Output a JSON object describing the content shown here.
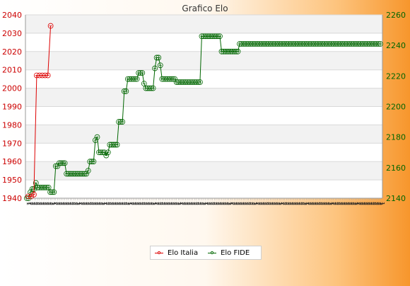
{
  "chart_data": {
    "type": "line",
    "title": "Grafico Elo",
    "grid": true,
    "legend_placement": "bottom-center",
    "left_axis": {
      "ylim": [
        1940,
        2040
      ],
      "ticks": [
        1940,
        1950,
        1960,
        1970,
        1980,
        1990,
        2000,
        2010,
        2020,
        2030,
        2040
      ],
      "color": "#cc0000"
    },
    "right_axis": {
      "ylim": [
        2140,
        2260
      ],
      "ticks": [
        2140,
        2160,
        2180,
        2200,
        2220,
        2240,
        2260
      ],
      "color": "#006600"
    },
    "series": [
      {
        "name": "Elo Italia",
        "axis": "left",
        "color": "#dd0000",
        "values": [
          1941,
          1941,
          1942,
          2007,
          2007,
          2007,
          2007,
          2007,
          2034
        ]
      },
      {
        "name": "Elo FIDE",
        "axis": "right",
        "color": "#006600",
        "values": [
          2140,
          2140,
          2144,
          2146,
          2146,
          2150,
          2147,
          2147,
          2147,
          2147,
          2147,
          2147,
          2147,
          2144,
          2144,
          2144,
          2161,
          2161,
          2163,
          2163,
          2163,
          2163,
          2156,
          2156,
          2156,
          2156,
          2156,
          2156,
          2156,
          2156,
          2156,
          2156,
          2156,
          2156,
          2158,
          2164,
          2164,
          2164,
          2178,
          2180,
          2170,
          2170,
          2170,
          2170,
          2168,
          2170,
          2175,
          2175,
          2175,
          2175,
          2175,
          2190,
          2190,
          2190,
          2210,
          2210,
          2218,
          2218,
          2218,
          2218,
          2218,
          2218,
          2222,
          2222,
          2222,
          2215,
          2212,
          2212,
          2212,
          2212,
          2212,
          2225,
          2232,
          2232,
          2227,
          2218,
          2218,
          2218,
          2218,
          2218,
          2218,
          2218,
          2218,
          2216,
          2216,
          2216,
          2216,
          2216,
          2216,
          2216,
          2216,
          2216,
          2216,
          2216,
          2216,
          2216,
          2216,
          2246,
          2246,
          2246,
          2246,
          2246,
          2246,
          2246,
          2246,
          2246,
          2246,
          2246,
          2236,
          2236,
          2236,
          2236,
          2236,
          2236,
          2236,
          2236,
          2236,
          2236,
          2241,
          2241,
          2241,
          2241,
          2241,
          2241,
          2241,
          2241,
          2241,
          2241,
          2241,
          2241,
          2241,
          2241,
          2241,
          2241,
          2241,
          2241,
          2241,
          2241,
          2241,
          2241,
          2241,
          2241,
          2241,
          2241,
          2241,
          2241,
          2241,
          2241,
          2241,
          2241,
          2241,
          2241,
          2241,
          2241,
          2241,
          2241,
          2241,
          2241,
          2241,
          2241,
          2241,
          2241,
          2241,
          2241,
          2241,
          2241,
          2241,
          2241,
          2241,
          2241,
          2241,
          2241,
          2241,
          2241,
          2241,
          2241,
          2241,
          2241,
          2241,
          2241,
          2241,
          2241,
          2241,
          2241,
          2241,
          2241,
          2241,
          2241,
          2241,
          2241,
          2241,
          2241,
          2241,
          2241,
          2241,
          2241,
          2241
        ]
      }
    ],
    "x_tick_pattern": [
      "1",
      "2",
      "2",
      "2",
      "2",
      "2",
      "2",
      "2",
      "2",
      "2",
      "2",
      "2",
      "2",
      "2"
    ]
  }
}
